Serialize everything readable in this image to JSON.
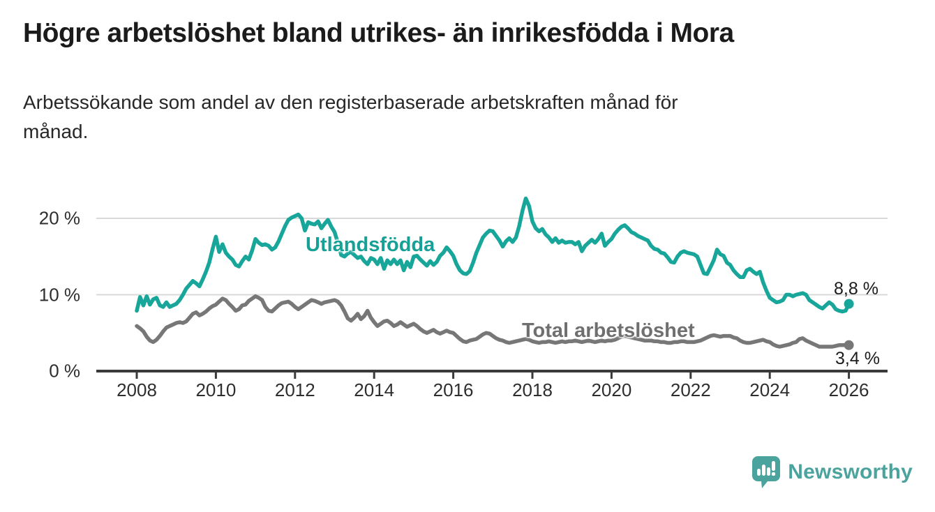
{
  "title": "Högre arbetslöshet bland utrikes- än inrikesfödda i Mora",
  "subtitle_lines": [
    "Arbetssökande som andel av den registerbaserade arbetskraften månad för",
    "månad."
  ],
  "branding": {
    "logo_text": "Newsworthy",
    "logo_color": "#4ba39d",
    "logo_icon": "speech-bubble-bar-chart-exclamation"
  },
  "chart_data": {
    "type": "line",
    "title": "Högre arbetslöshet bland utrikes- än inrikesfödda i Mora",
    "subtitle": "Arbetssökande som andel av den registerbaserade arbetskraften månad för månad.",
    "unit": "%",
    "x_start_year": 2008,
    "months_per_point": 1,
    "x_end": "2026-01",
    "x_tick_labels": [
      "2008",
      "2010",
      "2012",
      "2014",
      "2016",
      "2018",
      "2020",
      "2022",
      "2024",
      "2026"
    ],
    "x_tick_years": [
      2008,
      2010,
      2012,
      2014,
      2016,
      2018,
      2020,
      2022,
      2024,
      2026
    ],
    "y_ticks": [
      {
        "label": "0 %",
        "value": 0
      },
      {
        "label": "10 %",
        "value": 10
      },
      {
        "label": "20 %",
        "value": 20
      }
    ],
    "ylim": [
      0,
      24
    ],
    "grid": "horizontal",
    "legend_position": "inline-labels",
    "series": [
      {
        "name": "Utlandsfödda",
        "color": "#18a69a",
        "end_label": "8,8 %",
        "end_value": 8.8,
        "values": [
          7.9,
          9.7,
          8.6,
          9.8,
          8.7,
          9.4,
          9.6,
          8.6,
          8.4,
          9.0,
          8.4,
          8.6,
          8.8,
          9.3,
          10.0,
          10.8,
          11.3,
          11.8,
          11.5,
          11.1,
          12.0,
          13.0,
          14.2,
          16.0,
          17.6,
          15.6,
          16.6,
          15.5,
          15.0,
          14.6,
          13.9,
          13.7,
          14.4,
          15.0,
          14.6,
          15.8,
          17.3,
          16.8,
          16.5,
          16.6,
          16.4,
          15.9,
          16.2,
          17.0,
          18.0,
          19.0,
          19.8,
          20.1,
          20.3,
          20.5,
          20.0,
          18.4,
          19.5,
          19.3,
          19.2,
          19.6,
          18.7,
          19.3,
          19.8,
          18.9,
          18.2,
          16.8,
          15.2,
          15.0,
          15.4,
          15.6,
          15.2,
          14.8,
          15.0,
          14.4,
          14.0,
          14.8,
          14.6,
          14.0,
          14.8,
          13.4,
          14.5,
          14.0,
          14.6,
          14.0,
          14.5,
          13.2,
          14.3,
          13.6,
          15.0,
          15.1,
          14.6,
          14.2,
          13.8,
          14.4,
          13.9,
          14.3,
          15.1,
          15.5,
          16.2,
          15.7,
          15.1,
          14.0,
          13.2,
          12.8,
          12.7,
          13.1,
          14.2,
          15.5,
          16.5,
          17.5,
          18.0,
          18.4,
          18.3,
          17.7,
          17.1,
          16.3,
          17.0,
          17.4,
          16.9,
          17.5,
          19.0,
          21.0,
          22.6,
          21.6,
          19.6,
          18.7,
          18.3,
          18.6,
          17.9,
          17.5,
          16.9,
          17.4,
          16.8,
          17.1,
          16.8,
          16.9,
          16.9,
          16.6,
          16.9,
          15.7,
          16.4,
          16.8,
          17.2,
          16.8,
          17.3,
          18.0,
          16.4,
          16.9,
          17.3,
          18.0,
          18.5,
          18.9,
          19.1,
          18.7,
          18.2,
          18.0,
          17.7,
          17.5,
          17.3,
          17.1,
          16.4,
          16.0,
          15.9,
          15.5,
          15.4,
          14.9,
          14.3,
          14.2,
          15.0,
          15.5,
          15.7,
          15.5,
          15.4,
          15.3,
          15.0,
          13.9,
          12.8,
          12.7,
          13.6,
          14.5,
          15.9,
          15.3,
          15.1,
          14.2,
          13.9,
          13.2,
          12.7,
          12.3,
          12.3,
          13.2,
          13.4,
          13.0,
          12.7,
          13.0,
          11.6,
          10.5,
          9.6,
          9.3,
          9.0,
          9.1,
          9.3,
          10.0,
          10.0,
          9.8,
          10.0,
          10.1,
          10.2,
          10.0,
          9.3,
          9.0,
          8.7,
          8.4,
          8.2,
          8.6,
          9.0,
          8.7,
          8.1,
          7.9,
          7.8,
          7.9,
          8.8
        ]
      },
      {
        "name": "Total arbetslöshet",
        "color": "#777777",
        "end_label": "3,4 %",
        "end_value": 3.4,
        "values": [
          5.9,
          5.6,
          5.2,
          4.5,
          4.0,
          3.8,
          4.1,
          4.6,
          5.2,
          5.7,
          5.9,
          6.1,
          6.3,
          6.4,
          6.3,
          6.5,
          7.0,
          7.5,
          7.7,
          7.3,
          7.5,
          7.8,
          8.2,
          8.5,
          8.7,
          9.1,
          9.5,
          9.3,
          8.8,
          8.4,
          7.9,
          8.1,
          8.6,
          8.7,
          9.2,
          9.5,
          9.8,
          9.6,
          9.3,
          8.4,
          7.9,
          7.8,
          8.2,
          8.6,
          8.9,
          9.0,
          9.1,
          8.8,
          8.4,
          8.1,
          8.4,
          8.7,
          9.0,
          9.3,
          9.2,
          9.0,
          8.8,
          9.0,
          9.1,
          9.2,
          9.3,
          9.1,
          8.6,
          7.8,
          6.9,
          6.6,
          7.0,
          7.5,
          6.8,
          7.2,
          7.9,
          7.0,
          6.4,
          5.9,
          6.2,
          6.5,
          6.6,
          6.3,
          5.9,
          6.1,
          6.4,
          6.1,
          5.8,
          6.0,
          6.2,
          5.9,
          5.5,
          5.2,
          5.0,
          5.2,
          5.4,
          5.1,
          4.9,
          5.1,
          5.3,
          5.1,
          5.0,
          4.6,
          4.2,
          3.9,
          3.8,
          4.0,
          4.1,
          4.2,
          4.5,
          4.8,
          5.0,
          4.9,
          4.6,
          4.3,
          4.1,
          4.0,
          3.8,
          3.7,
          3.8,
          3.9,
          4.0,
          4.1,
          4.2,
          4.1,
          3.9,
          3.8,
          3.7,
          3.8,
          3.8,
          3.9,
          3.8,
          3.7,
          3.8,
          3.9,
          3.8,
          3.9,
          3.9,
          4.0,
          3.9,
          3.8,
          3.9,
          4.0,
          3.9,
          3.8,
          3.9,
          4.0,
          3.9,
          4.0,
          4.0,
          4.1,
          4.3,
          4.5,
          4.6,
          4.5,
          4.4,
          4.3,
          4.2,
          4.1,
          4.0,
          4.0,
          4.0,
          3.9,
          3.9,
          3.8,
          3.8,
          3.7,
          3.7,
          3.8,
          3.8,
          3.9,
          3.9,
          3.8,
          3.8,
          3.8,
          3.9,
          4.0,
          4.2,
          4.4,
          4.6,
          4.7,
          4.6,
          4.5,
          4.6,
          4.6,
          4.6,
          4.4,
          4.3,
          4.0,
          3.8,
          3.7,
          3.7,
          3.8,
          3.9,
          4.0,
          4.1,
          3.9,
          3.8,
          3.5,
          3.3,
          3.2,
          3.3,
          3.4,
          3.5,
          3.7,
          3.8,
          4.2,
          4.3,
          4.0,
          3.8,
          3.6,
          3.4,
          3.2,
          3.2,
          3.2,
          3.2,
          3.2,
          3.3,
          3.4,
          3.4,
          3.4,
          3.4
        ]
      }
    ]
  }
}
